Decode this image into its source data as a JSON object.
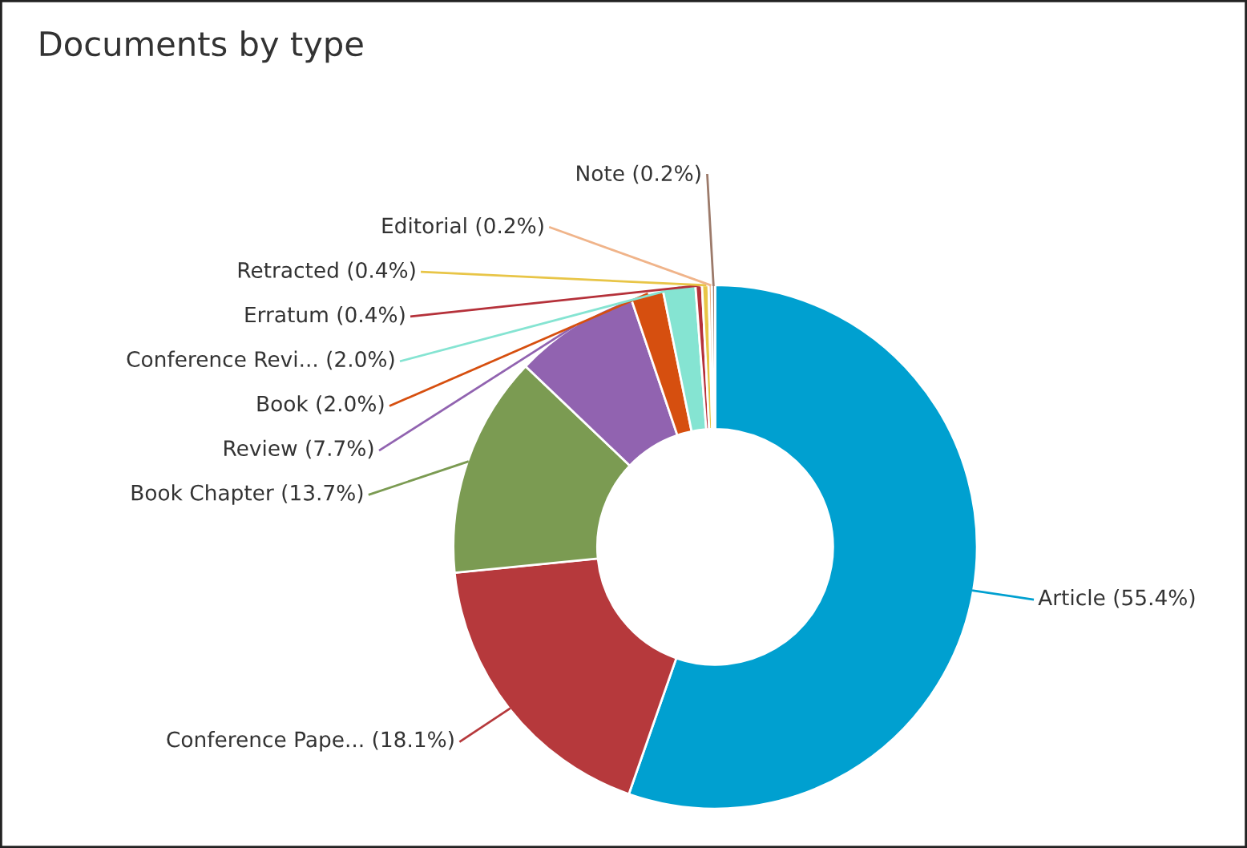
{
  "chart_data": {
    "type": "donut",
    "title": "Documents by type",
    "categories": [
      "Article",
      "Conference Pape...",
      "Book Chapter",
      "Review",
      "Book",
      "Conference Revi...",
      "Erratum",
      "Retracted",
      "Editorial",
      "Note"
    ],
    "values": [
      55.4,
      18.1,
      13.7,
      7.7,
      2.0,
      2.0,
      0.4,
      0.4,
      0.2,
      0.2
    ],
    "colors": [
      "#00a0d0",
      "#b6393c",
      "#7b9b52",
      "#9163b0",
      "#d64f0f",
      "#85e4d2",
      "#b5313a",
      "#e8c547",
      "#f0b48a",
      "#9c7a6a"
    ],
    "value_labels": [
      "(55.4%)",
      "(18.1%)",
      "(13.7%)",
      "(7.7%)",
      "(2.0%)",
      "(2.0%)",
      "(0.4%)",
      "(0.4%)",
      "(0.2%)",
      "(0.2%)"
    ],
    "legend": false
  }
}
